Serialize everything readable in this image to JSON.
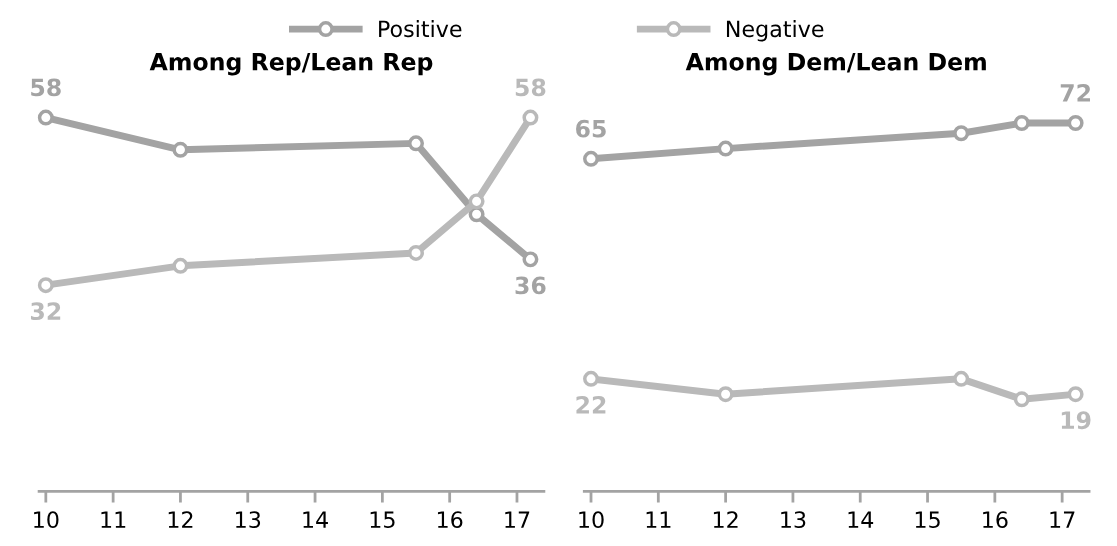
{
  "chart_data": [
    {
      "type": "line",
      "title": "Among Rep/Lean Rep",
      "x": [
        10,
        12,
        15.5,
        16.4,
        17.2
      ],
      "xlim": [
        9.9,
        17.4
      ],
      "xticks": [
        10,
        11,
        12,
        13,
        14,
        15,
        16,
        17
      ],
      "tick_labels": "x",
      "marker": "circle",
      "legend": "top",
      "grid": false,
      "series": [
        {
          "name": "Positive",
          "color": "#a3a3a3",
          "values": [
            58,
            53,
            54,
            43,
            36
          ],
          "value_labels": [
            "58",
            null,
            null,
            null,
            "36"
          ]
        },
        {
          "name": "Negative",
          "color": "#b9b9b9",
          "values": [
            32,
            35,
            37,
            45,
            58
          ],
          "value_labels": [
            "32",
            null,
            null,
            null,
            "58"
          ]
        }
      ]
    },
    {
      "type": "line",
      "title": "Among Dem/Lean Dem",
      "x": [
        10,
        12,
        15.5,
        16.4,
        17.2
      ],
      "xlim": [
        9.9,
        17.4
      ],
      "xticks": [
        10,
        11,
        12,
        13,
        14,
        15,
        16,
        17
      ],
      "tick_labels": "x",
      "marker": "circle",
      "grid": false,
      "series": [
        {
          "color": "#a3a3a3",
          "values": [
            65,
            67,
            70,
            72,
            72
          ],
          "value_labels": [
            "65",
            null,
            null,
            null,
            "72"
          ]
        },
        {
          "color": "#b9b9b9",
          "values": [
            22,
            19,
            22,
            18,
            19
          ],
          "value_labels": [
            "22",
            null,
            null,
            null,
            "19"
          ]
        }
      ]
    }
  ]
}
